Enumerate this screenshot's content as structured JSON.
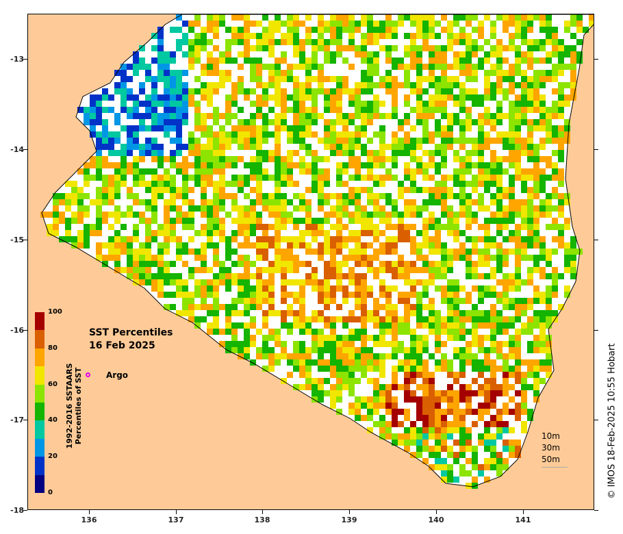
{
  "map": {
    "title_line1": "SST Percentiles",
    "title_line2": "16 Feb 2025",
    "y_axis_ticks": [
      "-13",
      "-14",
      "-15",
      "-16",
      "-17",
      "-18"
    ],
    "x_axis_ticks": [
      "136",
      "137",
      "138",
      "139",
      "140",
      "141"
    ],
    "argo_label": "Argo",
    "argo_color": "#e600e6",
    "land_color": "#fecb98",
    "colorbar": {
      "title_line1": "1992-2016 SSTAARS",
      "title_line2": "Percentiles of SST",
      "tick_labels": [
        "100",
        "80",
        "60",
        "40",
        "20",
        "0"
      ],
      "colors": [
        "#a50000",
        "#d95f00",
        "#ffa500",
        "#f1e600",
        "#8ce400",
        "#14b400",
        "#00c8a0",
        "#0096e6",
        "#0032c8",
        "#000080"
      ]
    },
    "depth_labels": [
      "10m",
      "30m",
      "50m"
    ],
    "credit": "© IMOS 18-Feb-2025 10:55 Hobart"
  }
}
